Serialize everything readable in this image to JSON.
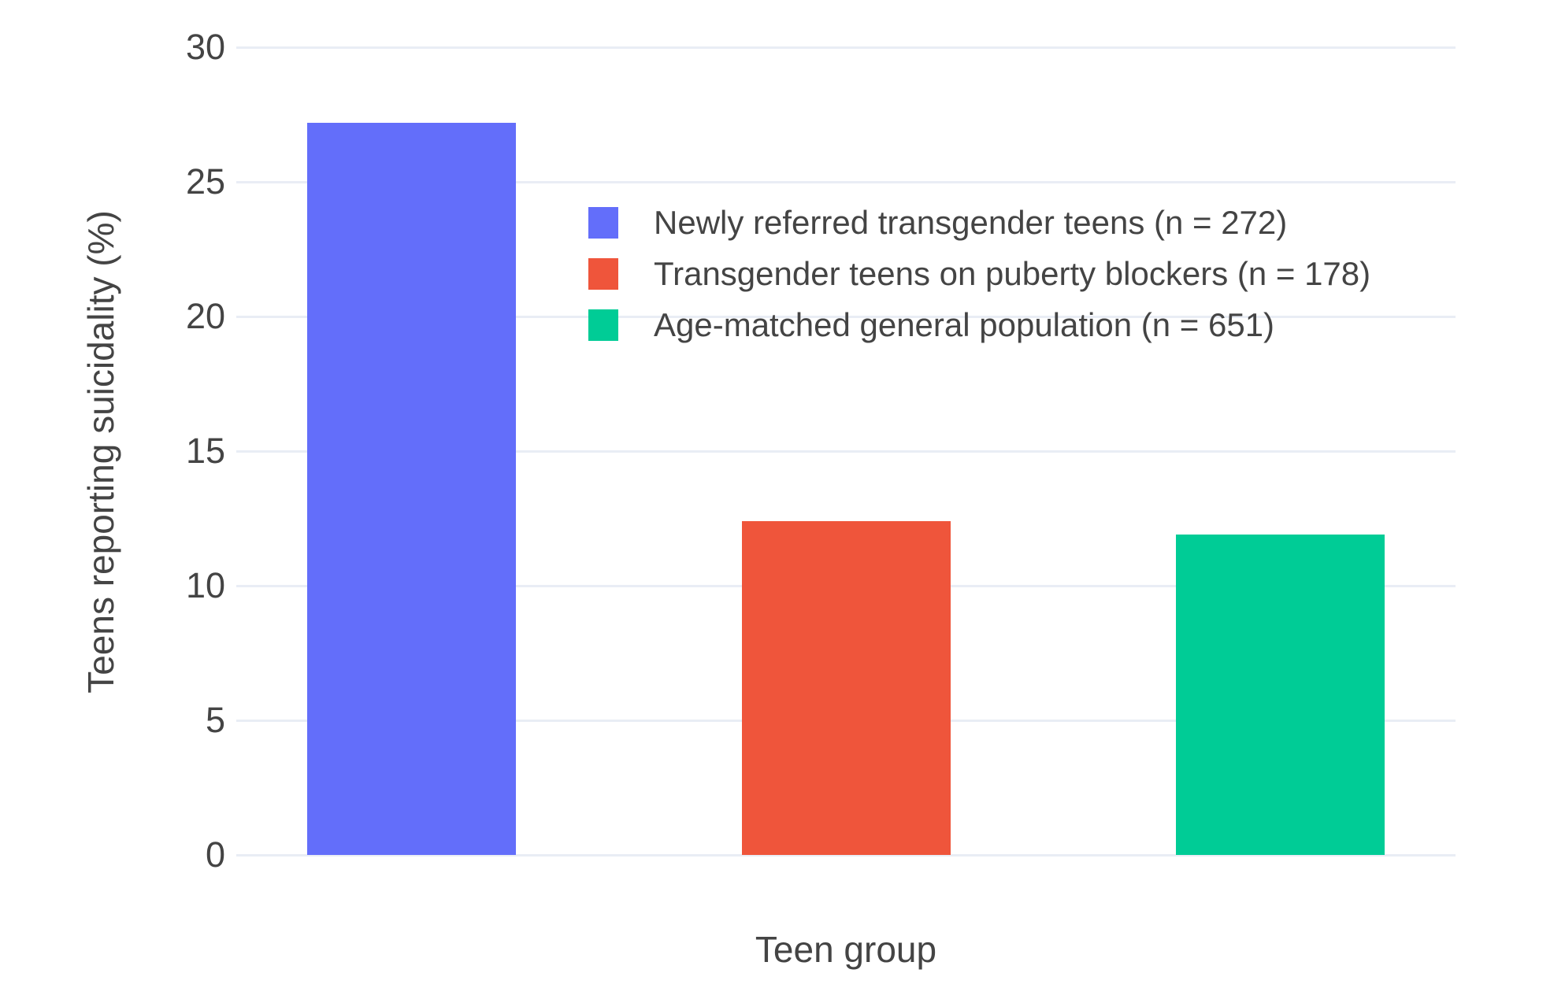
{
  "chart_data": {
    "type": "bar",
    "title": "",
    "xlabel": "Teen group",
    "ylabel": "Teens reporting suicidality (%)",
    "ylim": [
      0,
      30
    ],
    "yticks": [
      0,
      5,
      10,
      15,
      20,
      25,
      30
    ],
    "grid": true,
    "legend_position": "inside-upper-center",
    "background_color": "#ffffff",
    "gridline_color": "#E9EDF5",
    "text_color": "#444444",
    "bars": [
      {
        "label": "Newly referred transgender teens (n = 272)",
        "value": 27.2,
        "color": "#636EFA"
      },
      {
        "label": "Transgender teens on puberty blockers (n = 178)",
        "value": 12.4,
        "color": "#EF553B"
      },
      {
        "label": "Age-matched general population (n = 651)",
        "value": 11.9,
        "color": "#00CC96"
      }
    ]
  }
}
